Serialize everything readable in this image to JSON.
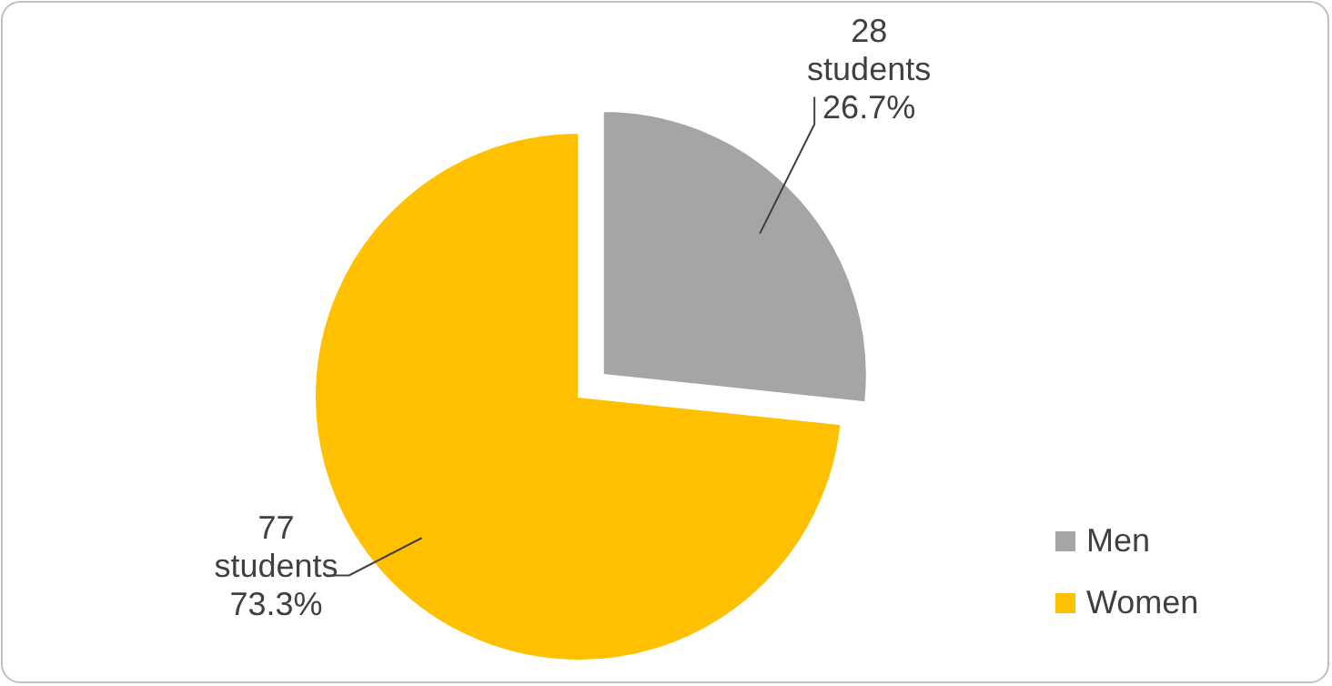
{
  "chart_data": {
    "type": "pie",
    "categories": [
      "Men",
      "Women"
    ],
    "values": [
      28,
      77
    ],
    "colors": [
      "#a5a5a5",
      "#ffc000"
    ],
    "value_labels": [
      "28 students 26.7%",
      "77 students 73.3%"
    ],
    "legend": "bottom right"
  }
}
